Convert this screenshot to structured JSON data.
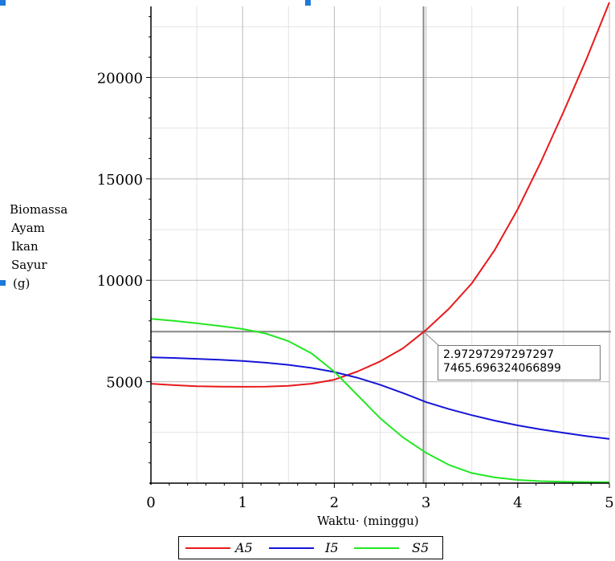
{
  "chart_data": {
    "type": "line",
    "xlabel": "Waktu· (minggu)",
    "ylabel_lines": [
      "Biomassa",
      "Ayam",
      "Ikan",
      "Sayur",
      "(g)"
    ],
    "xlim": [
      0,
      5
    ],
    "ylim": [
      0,
      23500
    ],
    "x_ticks": [
      "0",
      "1",
      "2",
      "3",
      "4",
      "5"
    ],
    "y_ticks": [
      "5000",
      "10000",
      "15000",
      "20000"
    ],
    "grid": true,
    "legend_placement": "bottom",
    "series": [
      {
        "name": "A5",
        "color": "#e8191b",
        "x": [
          0,
          0.25,
          0.5,
          0.75,
          1,
          1.25,
          1.5,
          1.75,
          2,
          2.25,
          2.5,
          2.75,
          3,
          3.25,
          3.5,
          3.75,
          4,
          4.25,
          4.5,
          4.75,
          5
        ],
        "y": [
          4900,
          4830,
          4780,
          4760,
          4750,
          4760,
          4800,
          4900,
          5100,
          5500,
          6000,
          6650,
          7550,
          8600,
          9850,
          11500,
          13500,
          15800,
          18300,
          20900,
          23700
        ]
      },
      {
        "name": "I5",
        "color": "#1515d8",
        "x": [
          0,
          0.25,
          0.5,
          0.75,
          1,
          1.25,
          1.5,
          1.75,
          2,
          2.25,
          2.5,
          2.75,
          3,
          3.25,
          3.5,
          3.75,
          4,
          4.25,
          4.5,
          4.75,
          5
        ],
        "y": [
          6200,
          6170,
          6130,
          6080,
          6020,
          5940,
          5830,
          5680,
          5480,
          5200,
          4850,
          4440,
          4000,
          3650,
          3350,
          3080,
          2850,
          2650,
          2480,
          2320,
          2180
        ]
      },
      {
        "name": "S5",
        "color": "#22e822",
        "x": [
          0,
          0.25,
          0.5,
          0.75,
          1,
          1.25,
          1.5,
          1.75,
          2,
          2.25,
          2.5,
          2.75,
          3,
          3.25,
          3.5,
          3.75,
          4,
          4.25,
          4.5,
          4.75,
          5
        ],
        "y": [
          8100,
          8000,
          7880,
          7750,
          7600,
          7380,
          7000,
          6400,
          5500,
          4350,
          3200,
          2250,
          1500,
          900,
          500,
          280,
          160,
          100,
          70,
          55,
          50
        ]
      }
    ],
    "probe": {
      "x": 2.97297297297297,
      "y": 7465.696324066899,
      "x_text": "2.97297297297297",
      "y_text": "7465.696324066899"
    }
  },
  "colors": {
    "grid": "#b9b9b9",
    "probe_line": "#8a8a8a",
    "axis": "#000000",
    "selection": "#1e7ad8"
  }
}
